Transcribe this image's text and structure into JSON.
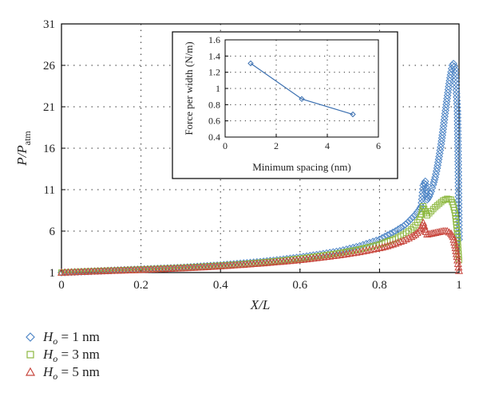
{
  "chart_data": [
    {
      "type": "scatter",
      "title": "",
      "xlabel": "X/L",
      "ylabel": "P/P_atm",
      "ylabel_parts": {
        "main": "P/P",
        "sub": "atm"
      },
      "xlim": [
        0,
        1
      ],
      "ylim": [
        1,
        31
      ],
      "xticks": [
        "0",
        "0.2",
        "0.4",
        "0.6",
        "0.8",
        "1"
      ],
      "yticks": [
        "1",
        "6",
        "11",
        "16",
        "21",
        "26",
        "31"
      ],
      "grid": true,
      "legend_position": "below-left",
      "series": [
        {
          "name": "H_o = 1 nm",
          "legend_parts": {
            "var": "H",
            "sub": "o",
            "rest": " = 1 nm"
          },
          "marker": "diamond",
          "color": "#4f86c6",
          "x": [
            0.0,
            0.05,
            0.1,
            0.15,
            0.2,
            0.25,
            0.3,
            0.35,
            0.4,
            0.45,
            0.5,
            0.55,
            0.6,
            0.65,
            0.7,
            0.75,
            0.8,
            0.82,
            0.84,
            0.86,
            0.87,
            0.88,
            0.89,
            0.9,
            0.905,
            0.91,
            0.915,
            0.92,
            0.925,
            0.93,
            0.935,
            0.94,
            0.945,
            0.95,
            0.955,
            0.96,
            0.965,
            0.97,
            0.975,
            0.98,
            0.983,
            0.986,
            0.99,
            0.993,
            0.996,
            0.998,
            1.0
          ],
          "y": [
            1.0,
            1.1,
            1.2,
            1.3,
            1.4,
            1.5,
            1.6,
            1.75,
            1.9,
            2.1,
            2.3,
            2.55,
            2.85,
            3.2,
            3.6,
            4.2,
            5.0,
            5.5,
            6.0,
            6.6,
            7.0,
            7.5,
            8.0,
            8.6,
            9.0,
            11.5,
            12.0,
            9.8,
            10.2,
            10.8,
            11.6,
            12.5,
            13.6,
            15.0,
            16.5,
            18.3,
            20.2,
            22.0,
            23.8,
            25.2,
            26.0,
            26.2,
            25.5,
            23.0,
            20.5,
            14.0,
            5.0
          ]
        },
        {
          "name": "H_o = 3 nm",
          "legend_parts": {
            "var": "H",
            "sub": "o",
            "rest": " = 3 nm"
          },
          "marker": "square",
          "color": "#8db840",
          "x": [
            0.0,
            0.05,
            0.1,
            0.15,
            0.2,
            0.25,
            0.3,
            0.35,
            0.4,
            0.45,
            0.5,
            0.55,
            0.6,
            0.65,
            0.7,
            0.75,
            0.8,
            0.82,
            0.84,
            0.86,
            0.88,
            0.89,
            0.9,
            0.905,
            0.91,
            0.915,
            0.92,
            0.93,
            0.94,
            0.95,
            0.96,
            0.97,
            0.98,
            0.985,
            0.99,
            0.995,
            1.0
          ],
          "y": [
            1.0,
            1.1,
            1.2,
            1.28,
            1.38,
            1.47,
            1.57,
            1.7,
            1.85,
            2.0,
            2.2,
            2.42,
            2.68,
            3.0,
            3.35,
            3.8,
            4.4,
            4.75,
            5.1,
            5.6,
            6.2,
            6.7,
            7.4,
            8.0,
            9.0,
            8.4,
            7.9,
            8.4,
            8.9,
            9.3,
            9.7,
            9.9,
            9.8,
            9.2,
            8.2,
            6.0,
            2.5
          ]
        },
        {
          "name": "H_o = 5 nm",
          "legend_parts": {
            "var": "H",
            "sub": "o",
            "rest": " = 5 nm"
          },
          "marker": "triangle",
          "color": "#c8473e",
          "x": [
            0.0,
            0.05,
            0.1,
            0.15,
            0.2,
            0.25,
            0.3,
            0.35,
            0.4,
            0.45,
            0.5,
            0.55,
            0.6,
            0.65,
            0.7,
            0.75,
            0.8,
            0.82,
            0.84,
            0.86,
            0.88,
            0.89,
            0.9,
            0.905,
            0.91,
            0.915,
            0.92,
            0.93,
            0.94,
            0.95,
            0.96,
            0.97,
            0.98,
            0.985,
            0.99,
            0.995,
            1.0
          ],
          "y": [
            1.0,
            1.08,
            1.17,
            1.25,
            1.33,
            1.42,
            1.52,
            1.63,
            1.77,
            1.92,
            2.1,
            2.3,
            2.52,
            2.8,
            3.1,
            3.48,
            3.95,
            4.2,
            4.5,
            4.85,
            5.3,
            5.6,
            6.0,
            6.4,
            7.0,
            6.2,
            5.6,
            5.7,
            5.8,
            5.9,
            6.0,
            6.0,
            5.7,
            5.3,
            4.3,
            2.9,
            1.2
          ]
        }
      ]
    },
    {
      "type": "line",
      "title": "",
      "xlabel": "Minimum spacing (nm)",
      "ylabel": "Force per width (N/m)",
      "xlim": [
        0,
        6
      ],
      "ylim": [
        0.4,
        1.6
      ],
      "xticks": [
        "0",
        "2",
        "4",
        "6"
      ],
      "yticks": [
        "0.4",
        "0.6",
        "0.8",
        "1",
        "1.2",
        "1.4",
        "1.6"
      ],
      "grid": true,
      "series": [
        {
          "x": [
            1,
            3,
            5
          ],
          "y": [
            1.31,
            0.87,
            0.68
          ],
          "marker": "diamond",
          "color": "#3a6fb0"
        }
      ]
    }
  ]
}
